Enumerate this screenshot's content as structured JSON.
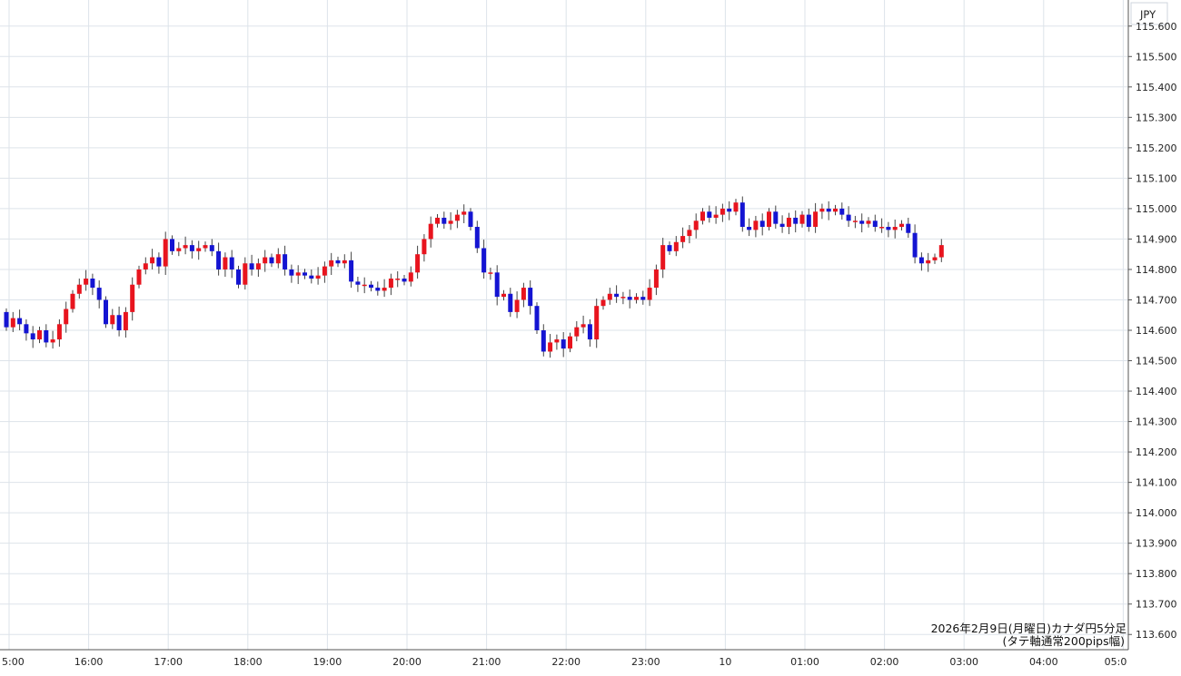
{
  "chart_data": {
    "type": "candlestick",
    "currency": "JPY",
    "caption_line1": "2026年2月9日(月曜日)カナダ円5分足",
    "caption_line2": "(タテ軸通常200pips幅)",
    "ylim": [
      113.55,
      115.65
    ],
    "y_ticks": [
      "115.600",
      "115.500",
      "115.400",
      "115.300",
      "115.200",
      "115.100",
      "115.000",
      "114.900",
      "114.800",
      "114.700",
      "114.600",
      "114.500",
      "114.400",
      "114.300",
      "114.200",
      "114.100",
      "114.000",
      "113.900",
      "113.800",
      "113.700",
      "113.600"
    ],
    "x_ticks": [
      "5:00",
      "16:00",
      "17:00",
      "18:00",
      "19:00",
      "20:00",
      "21:00",
      "22:00",
      "23:00",
      "10",
      "01:00",
      "02:00",
      "03:00",
      "04:00",
      "05:0"
    ],
    "colors": {
      "up": "#e8141e",
      "down": "#1414d2",
      "grid": "#dde3ea",
      "axis": "#555555"
    },
    "closes": [
      114.61,
      114.64,
      114.62,
      114.59,
      114.57,
      114.6,
      114.56,
      114.57,
      114.62,
      114.67,
      114.72,
      114.75,
      114.77,
      114.74,
      114.7,
      114.62,
      114.65,
      114.6,
      114.66,
      114.75,
      114.8,
      114.82,
      114.84,
      114.81,
      114.9,
      114.86,
      114.87,
      114.88,
      114.86,
      114.87,
      114.88,
      114.86,
      114.8,
      114.84,
      114.8,
      114.75,
      114.82,
      114.8,
      114.82,
      114.84,
      114.82,
      114.85,
      114.8,
      114.78,
      114.79,
      114.78,
      114.77,
      114.78,
      114.81,
      114.83,
      114.82,
      114.83,
      114.76,
      114.75,
      114.75,
      114.74,
      114.73,
      114.74,
      114.77,
      114.77,
      114.76,
      114.79,
      114.85,
      114.9,
      114.95,
      114.97,
      114.95,
      114.96,
      114.98,
      114.99,
      114.94,
      114.87,
      114.79,
      114.79,
      114.71,
      114.72,
      114.66,
      114.7,
      114.74,
      114.68,
      114.6,
      114.53,
      114.56,
      114.57,
      114.54,
      114.58,
      114.61,
      114.62,
      114.57,
      114.68,
      114.7,
      114.72,
      114.71,
      114.71,
      114.7,
      114.71,
      114.7,
      114.74,
      114.8,
      114.88,
      114.86,
      114.89,
      114.91,
      114.93,
      114.96,
      114.99,
      114.97,
      114.98,
      115.0,
      114.99,
      115.02,
      114.94,
      114.93,
      114.96,
      114.94,
      114.99,
      114.95,
      114.94,
      114.97,
      114.95,
      114.98,
      114.94,
      114.99,
      115.0,
      114.99,
      115.0,
      114.98,
      114.96,
      114.96,
      114.95,
      114.96,
      114.94,
      114.94,
      114.93,
      114.94,
      114.95,
      114.92,
      114.84,
      114.82,
      114.83,
      114.84,
      114.88
    ]
  }
}
